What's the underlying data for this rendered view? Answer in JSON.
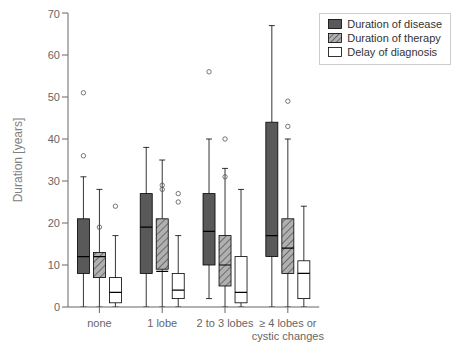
{
  "chart_data": {
    "type": "box",
    "categories": [
      "none",
      "1 lobe",
      "2 to 3 lobes",
      "≥ 4 lobes or\ncystic changes"
    ],
    "ylabel": "Duration [years]",
    "ylim": [
      0,
      70
    ],
    "yticks": [
      0,
      10,
      20,
      30,
      40,
      50,
      60,
      70
    ],
    "grid": false,
    "legend": "upper right",
    "series": [
      {
        "name": "Duration of disease",
        "color": "#595959",
        "boxes": [
          {
            "q1": 8,
            "median": 12,
            "q3": 21,
            "whislo": 0,
            "whishi": 31,
            "fliers": [
              36,
              51
            ]
          },
          {
            "q1": 8,
            "median": 19,
            "q3": 27,
            "whislo": 0,
            "whishi": 38,
            "fliers": []
          },
          {
            "q1": 10,
            "median": 18,
            "q3": 27,
            "whislo": 2,
            "whishi": 40,
            "fliers": [
              56
            ]
          },
          {
            "q1": 12,
            "median": 17,
            "q3": 44,
            "whislo": 0,
            "whishi": 67,
            "fliers": []
          }
        ]
      },
      {
        "name": "Duration of therapy",
        "color": "#b0b0b0",
        "boxes": [
          {
            "q1": 7,
            "median": 12,
            "q3": 13,
            "whislo": 0,
            "whishi": 28,
            "fliers": [
              19
            ]
          },
          {
            "q1": 9,
            "median": 8.5,
            "q3": 21,
            "whislo": 0,
            "whishi": 35,
            "fliers": [
              28,
              29
            ]
          },
          {
            "q1": 5,
            "median": 10,
            "q3": 17,
            "whislo": 0,
            "whishi": 33,
            "fliers": [
              40,
              31
            ]
          },
          {
            "q1": 8,
            "median": 14,
            "q3": 21,
            "whislo": 0,
            "whishi": 40,
            "fliers": [
              49,
              43
            ]
          }
        ]
      },
      {
        "name": "Delay of diagnosis",
        "color": "#ffffff",
        "boxes": [
          {
            "q1": 1,
            "median": 3.5,
            "q3": 7,
            "whislo": 0,
            "whishi": 17,
            "fliers": [
              24
            ]
          },
          {
            "q1": 2,
            "median": 4,
            "q3": 8,
            "whislo": 0,
            "whishi": 17,
            "fliers": [
              25,
              27
            ]
          },
          {
            "q1": 1,
            "median": 3.5,
            "q3": 12,
            "whislo": 0,
            "whishi": 28,
            "fliers": []
          },
          {
            "q1": 2,
            "median": 8,
            "q3": 11,
            "whislo": 0,
            "whishi": 24,
            "fliers": []
          }
        ]
      }
    ]
  }
}
